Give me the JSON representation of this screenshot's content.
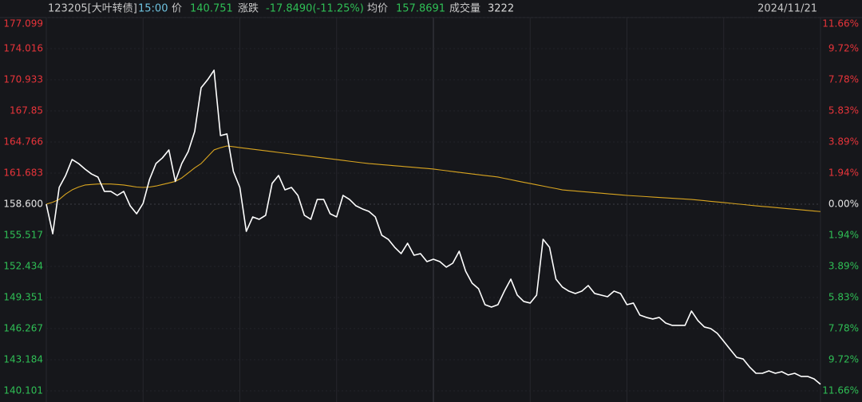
{
  "chart_data": {
    "type": "line",
    "header": [
      {
        "text": "123205[大叶转债]",
        "color": "#c8c8c8"
      },
      {
        "text": "15:00",
        "color": "#6fc3e0"
      },
      {
        "text": "价",
        "color": "#c8c8c8"
      },
      {
        "text": "140.751",
        "color": "#2fbf55"
      },
      {
        "text": "涨跌",
        "color": "#c8c8c8"
      },
      {
        "text": "-17.8490(-11.25%)",
        "color": "#2fbf55"
      },
      {
        "text": "均价",
        "color": "#c8c8c8"
      },
      {
        "text": "157.8691",
        "color": "#2fbf55"
      },
      {
        "text": "成交量",
        "color": "#c8c8c8"
      },
      {
        "text": "3222",
        "color": "#d8d8d8"
      }
    ],
    "date": "2024/11/21",
    "up_color": "#e8343a",
    "down_color": "#2fbf55",
    "flat_color": "#e6e6e6",
    "xlim": [
      0,
      120
    ],
    "xticks": [
      0,
      15,
      30,
      45,
      60,
      75,
      90,
      105,
      120
    ],
    "ylim": [
      140.101,
      177.099
    ],
    "yticks": [
      177.099,
      174.016,
      170.933,
      167.85,
      164.766,
      161.683,
      {
        "value": 158.6,
        "label": "158.600"
      },
      155.517,
      152.434,
      149.351,
      146.267,
      143.184,
      140.101
    ],
    "y2lim": [
      -11.66,
      11.66
    ],
    "y2ticks": [
      {
        "value": 11.66,
        "label": "11.66%"
      },
      {
        "value": 9.72,
        "label": "9.72%"
      },
      {
        "value": 7.78,
        "label": "7.78%"
      },
      {
        "value": 5.83,
        "label": "5.83%"
      },
      {
        "value": 3.89,
        "label": "3.89%"
      },
      {
        "value": 1.94,
        "label": "1.94%"
      },
      {
        "value": 0,
        "label": "0.00%"
      },
      {
        "value": -1.94,
        "label": "1.94%"
      },
      {
        "value": -3.89,
        "label": "3.89%"
      },
      {
        "value": -5.83,
        "label": "5.83%"
      },
      {
        "value": -7.78,
        "label": "7.78%"
      },
      {
        "value": -9.72,
        "label": "9.72%"
      },
      {
        "value": -11.66,
        "label": "11.66%"
      }
    ],
    "grid": true,
    "series": [
      {
        "name": "价",
        "color": "#ffffff",
        "values": [
          158.6,
          155.67,
          160.26,
          161.45,
          163.03,
          162.63,
          162.08,
          161.6,
          161.29,
          159.87,
          159.87,
          159.47,
          159.87,
          158.44,
          157.65,
          158.68,
          161.05,
          162.63,
          163.19,
          163.98,
          160.86,
          162.63,
          163.82,
          165.8,
          170.14,
          170.93,
          171.88,
          165.4,
          165.56,
          161.84,
          160.26,
          155.91,
          157.34,
          157.1,
          157.5,
          160.66,
          161.45,
          160.02,
          160.26,
          159.47,
          157.5,
          157.1,
          159.07,
          159.07,
          157.65,
          157.34,
          159.47,
          159.07,
          158.44,
          158.13,
          157.89,
          157.34,
          155.52,
          155.12,
          154.33,
          153.7,
          154.73,
          153.54,
          153.7,
          152.91,
          153.15,
          152.91,
          152.36,
          152.75,
          153.94,
          151.96,
          150.77,
          150.22,
          148.64,
          148.4,
          148.64,
          149.98,
          151.17,
          149.59,
          148.96,
          148.8,
          149.59,
          155.12,
          154.33,
          151.17,
          150.38,
          149.98,
          149.75,
          149.98,
          150.54,
          149.75,
          149.59,
          149.43,
          149.98,
          149.75,
          148.64,
          148.8,
          147.61,
          147.38,
          147.22,
          147.38,
          146.82,
          146.59,
          146.59,
          146.59,
          148.01,
          147.06,
          146.43,
          146.27,
          145.8,
          145.01,
          144.21,
          143.42,
          143.26,
          142.47,
          141.84,
          141.84,
          142.08,
          141.84,
          142.0,
          141.68,
          141.84,
          141.53,
          141.53,
          141.29,
          140.751
        ]
      },
      {
        "name": "均价",
        "color": "#d9a520",
        "values": [
          158.6,
          158.8,
          159.07,
          159.6,
          160.02,
          160.3,
          160.5,
          160.55,
          160.6,
          160.6,
          160.6,
          160.55,
          160.5,
          160.4,
          160.3,
          160.26,
          160.3,
          160.4,
          160.55,
          160.7,
          160.86,
          161.2,
          161.7,
          162.2,
          162.63,
          163.3,
          163.98,
          164.2,
          164.37,
          164.3,
          164.21,
          164.13,
          164.05,
          163.97,
          163.89,
          163.81,
          163.73,
          163.65,
          163.57,
          163.5,
          163.42,
          163.34,
          163.26,
          163.18,
          163.1,
          163.02,
          162.94,
          162.86,
          162.78,
          162.7,
          162.63,
          162.58,
          162.52,
          162.47,
          162.41,
          162.36,
          162.3,
          162.25,
          162.19,
          162.14,
          162.08,
          162.0,
          161.92,
          161.84,
          161.76,
          161.68,
          161.6,
          161.52,
          161.44,
          161.37,
          161.29,
          161.16,
          161.03,
          160.9,
          160.77,
          160.65,
          160.52,
          160.4,
          160.27,
          160.15,
          160.02,
          159.96,
          159.91,
          159.85,
          159.8,
          159.74,
          159.69,
          159.63,
          159.58,
          159.52,
          159.47,
          159.43,
          159.39,
          159.35,
          159.31,
          159.27,
          159.23,
          159.19,
          159.15,
          159.11,
          159.07,
          159.01,
          158.95,
          158.88,
          158.82,
          158.76,
          158.7,
          158.63,
          158.57,
          158.5,
          158.44,
          158.38,
          158.33,
          158.27,
          158.21,
          158.15,
          158.1,
          158.04,
          157.98,
          157.92,
          157.8691
        ]
      }
    ]
  }
}
